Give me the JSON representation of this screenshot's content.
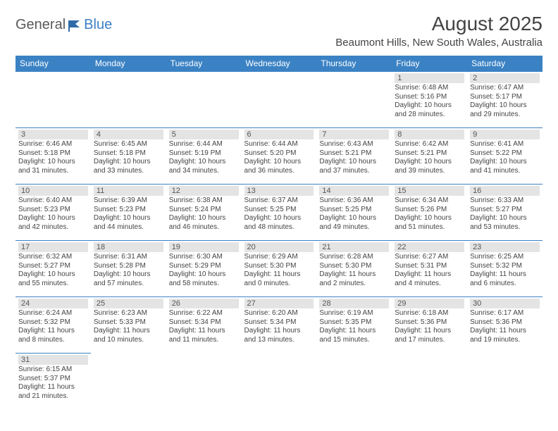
{
  "logo": {
    "text1": "General",
    "text2": "Blue"
  },
  "title": "August 2025",
  "location": "Beaumont Hills, New South Wales, Australia",
  "colors": {
    "header_bg": "#3b82c4",
    "header_text": "#ffffff",
    "daynum_bg": "#e4e4e4",
    "border": "#3b82c4",
    "logo_accent": "#3b7fc4"
  },
  "dayNames": [
    "Sunday",
    "Monday",
    "Tuesday",
    "Wednesday",
    "Thursday",
    "Friday",
    "Saturday"
  ],
  "weeks": [
    [
      null,
      null,
      null,
      null,
      null,
      {
        "d": "1",
        "sr": "6:48 AM",
        "ss": "5:16 PM",
        "dl": "10 hours and 28 minutes."
      },
      {
        "d": "2",
        "sr": "6:47 AM",
        "ss": "5:17 PM",
        "dl": "10 hours and 29 minutes."
      }
    ],
    [
      {
        "d": "3",
        "sr": "6:46 AM",
        "ss": "5:18 PM",
        "dl": "10 hours and 31 minutes."
      },
      {
        "d": "4",
        "sr": "6:45 AM",
        "ss": "5:18 PM",
        "dl": "10 hours and 33 minutes."
      },
      {
        "d": "5",
        "sr": "6:44 AM",
        "ss": "5:19 PM",
        "dl": "10 hours and 34 minutes."
      },
      {
        "d": "6",
        "sr": "6:44 AM",
        "ss": "5:20 PM",
        "dl": "10 hours and 36 minutes."
      },
      {
        "d": "7",
        "sr": "6:43 AM",
        "ss": "5:21 PM",
        "dl": "10 hours and 37 minutes."
      },
      {
        "d": "8",
        "sr": "6:42 AM",
        "ss": "5:21 PM",
        "dl": "10 hours and 39 minutes."
      },
      {
        "d": "9",
        "sr": "6:41 AM",
        "ss": "5:22 PM",
        "dl": "10 hours and 41 minutes."
      }
    ],
    [
      {
        "d": "10",
        "sr": "6:40 AM",
        "ss": "5:23 PM",
        "dl": "10 hours and 42 minutes."
      },
      {
        "d": "11",
        "sr": "6:39 AM",
        "ss": "5:23 PM",
        "dl": "10 hours and 44 minutes."
      },
      {
        "d": "12",
        "sr": "6:38 AM",
        "ss": "5:24 PM",
        "dl": "10 hours and 46 minutes."
      },
      {
        "d": "13",
        "sr": "6:37 AM",
        "ss": "5:25 PM",
        "dl": "10 hours and 48 minutes."
      },
      {
        "d": "14",
        "sr": "6:36 AM",
        "ss": "5:25 PM",
        "dl": "10 hours and 49 minutes."
      },
      {
        "d": "15",
        "sr": "6:34 AM",
        "ss": "5:26 PM",
        "dl": "10 hours and 51 minutes."
      },
      {
        "d": "16",
        "sr": "6:33 AM",
        "ss": "5:27 PM",
        "dl": "10 hours and 53 minutes."
      }
    ],
    [
      {
        "d": "17",
        "sr": "6:32 AM",
        "ss": "5:27 PM",
        "dl": "10 hours and 55 minutes."
      },
      {
        "d": "18",
        "sr": "6:31 AM",
        "ss": "5:28 PM",
        "dl": "10 hours and 57 minutes."
      },
      {
        "d": "19",
        "sr": "6:30 AM",
        "ss": "5:29 PM",
        "dl": "10 hours and 58 minutes."
      },
      {
        "d": "20",
        "sr": "6:29 AM",
        "ss": "5:30 PM",
        "dl": "11 hours and 0 minutes."
      },
      {
        "d": "21",
        "sr": "6:28 AM",
        "ss": "5:30 PM",
        "dl": "11 hours and 2 minutes."
      },
      {
        "d": "22",
        "sr": "6:27 AM",
        "ss": "5:31 PM",
        "dl": "11 hours and 4 minutes."
      },
      {
        "d": "23",
        "sr": "6:25 AM",
        "ss": "5:32 PM",
        "dl": "11 hours and 6 minutes."
      }
    ],
    [
      {
        "d": "24",
        "sr": "6:24 AM",
        "ss": "5:32 PM",
        "dl": "11 hours and 8 minutes."
      },
      {
        "d": "25",
        "sr": "6:23 AM",
        "ss": "5:33 PM",
        "dl": "11 hours and 10 minutes."
      },
      {
        "d": "26",
        "sr": "6:22 AM",
        "ss": "5:34 PM",
        "dl": "11 hours and 11 minutes."
      },
      {
        "d": "27",
        "sr": "6:20 AM",
        "ss": "5:34 PM",
        "dl": "11 hours and 13 minutes."
      },
      {
        "d": "28",
        "sr": "6:19 AM",
        "ss": "5:35 PM",
        "dl": "11 hours and 15 minutes."
      },
      {
        "d": "29",
        "sr": "6:18 AM",
        "ss": "5:36 PM",
        "dl": "11 hours and 17 minutes."
      },
      {
        "d": "30",
        "sr": "6:17 AM",
        "ss": "5:36 PM",
        "dl": "11 hours and 19 minutes."
      }
    ],
    [
      {
        "d": "31",
        "sr": "6:15 AM",
        "ss": "5:37 PM",
        "dl": "11 hours and 21 minutes."
      },
      null,
      null,
      null,
      null,
      null,
      null
    ]
  ],
  "labels": {
    "sunrise": "Sunrise:",
    "sunset": "Sunset:",
    "daylight": "Daylight:"
  }
}
